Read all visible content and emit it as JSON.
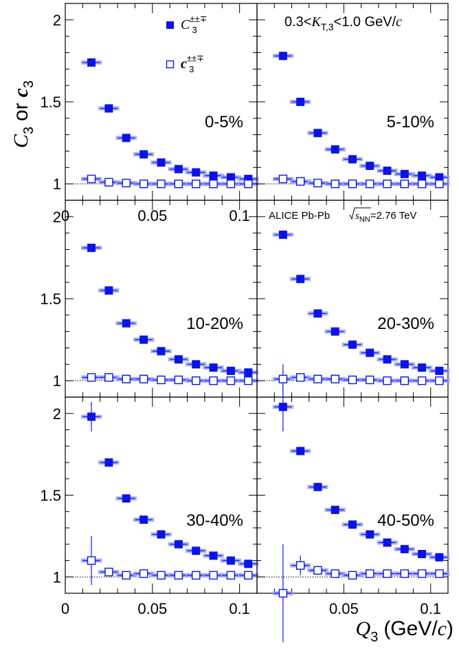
{
  "figure": {
    "y_axis_title": "C",
    "y_axis_title_sub": "3",
    "y_axis_title_or": "or",
    "y_axis_title2": "c",
    "y_axis_title2_sub": "3",
    "x_axis_title": "Q",
    "x_axis_title_sub": "3",
    "x_axis_title_units_open": "(GeV/",
    "x_axis_title_units_c": "c",
    "x_axis_title_units_close": ")",
    "kt_label_prefix": "0.3<",
    "kt_label_K": "K",
    "kt_label_sub": "T,3",
    "kt_label_suffix": "<1.0 GeV/",
    "kt_label_c": "c",
    "alice_label": "ALICE Pb-Pb",
    "alice_sqrt_s": "s",
    "alice_sqrt_sub": "NN",
    "alice_energy": "=2.76 TeV",
    "legend": [
      {
        "symbol": "C",
        "sub": "3",
        "sup": "±±∓",
        "style": "filled"
      },
      {
        "symbol": "c",
        "sub": "3",
        "sup": "±±∓",
        "style": "open"
      }
    ]
  },
  "chart_data": [
    {
      "type": "scatter",
      "panel": "0-5%",
      "centrality_label": "0-5%",
      "xlim": [
        0,
        0.11
      ],
      "ylim": [
        0.9,
        2.1
      ],
      "x_ticks": [
        "0",
        "0.05",
        "0.1"
      ],
      "y_ticks": [
        "1",
        "1.5",
        "2"
      ],
      "series": [
        {
          "name": "C3",
          "marker": "filled-square",
          "x": [
            0.015,
            0.025,
            0.035,
            0.045,
            0.055,
            0.065,
            0.075,
            0.085,
            0.095,
            0.105
          ],
          "y": [
            1.74,
            1.46,
            1.28,
            1.18,
            1.13,
            1.09,
            1.07,
            1.05,
            1.04,
            1.03
          ],
          "yerr": [
            0.005,
            0.004,
            0.003,
            0.003,
            0.003,
            0.003,
            0.003,
            0.003,
            0.003,
            0.003
          ]
        },
        {
          "name": "c3",
          "marker": "open-square",
          "x": [
            0.015,
            0.025,
            0.035,
            0.045,
            0.055,
            0.065,
            0.075,
            0.085,
            0.095,
            0.105
          ],
          "y": [
            1.03,
            1.01,
            1.005,
            1.0,
            1.0,
            1.0,
            1.0,
            1.0,
            1.0,
            1.0
          ],
          "yerr": [
            0.005,
            0.004,
            0.003,
            0.003,
            0.003,
            0.003,
            0.003,
            0.003,
            0.003,
            0.003
          ]
        }
      ]
    },
    {
      "type": "scatter",
      "panel": "5-10%",
      "centrality_label": "5-10%",
      "xlim": [
        0,
        0.11
      ],
      "ylim": [
        0.9,
        2.1
      ],
      "x_ticks": [
        "",
        "",
        ""
      ],
      "y_ticks": [
        "",
        "",
        ""
      ],
      "series": [
        {
          "name": "C3",
          "marker": "filled-square",
          "x": [
            0.015,
            0.025,
            0.035,
            0.045,
            0.055,
            0.065,
            0.075,
            0.085,
            0.095,
            0.105
          ],
          "y": [
            1.78,
            1.5,
            1.31,
            1.21,
            1.15,
            1.11,
            1.08,
            1.06,
            1.05,
            1.04
          ],
          "yerr": [
            0.005,
            0.004,
            0.003,
            0.003,
            0.003,
            0.003,
            0.003,
            0.003,
            0.003,
            0.003
          ]
        },
        {
          "name": "c3",
          "marker": "open-square",
          "x": [
            0.015,
            0.025,
            0.035,
            0.045,
            0.055,
            0.065,
            0.075,
            0.085,
            0.095,
            0.105
          ],
          "y": [
            1.03,
            1.015,
            1.005,
            1.0,
            1.0,
            1.0,
            1.0,
            1.0,
            1.0,
            1.0
          ],
          "yerr": [
            0.005,
            0.004,
            0.003,
            0.003,
            0.003,
            0.003,
            0.003,
            0.003,
            0.003,
            0.003
          ]
        }
      ]
    },
    {
      "type": "scatter",
      "panel": "10-20%",
      "centrality_label": "10-20%",
      "xlim": [
        0,
        0.11
      ],
      "ylim": [
        0.9,
        2.1
      ],
      "x_ticks": [
        "",
        "",
        ""
      ],
      "y_ticks": [
        "1",
        "1.5",
        "2"
      ],
      "series": [
        {
          "name": "C3",
          "marker": "filled-square",
          "x": [
            0.015,
            0.025,
            0.035,
            0.045,
            0.055,
            0.065,
            0.075,
            0.085,
            0.095,
            0.105
          ],
          "y": [
            1.81,
            1.55,
            1.35,
            1.25,
            1.18,
            1.13,
            1.1,
            1.08,
            1.06,
            1.05
          ],
          "yerr": [
            0.006,
            0.005,
            0.004,
            0.003,
            0.003,
            0.003,
            0.003,
            0.003,
            0.003,
            0.003
          ]
        },
        {
          "name": "c3",
          "marker": "open-square",
          "x": [
            0.015,
            0.025,
            0.035,
            0.045,
            0.055,
            0.065,
            0.075,
            0.085,
            0.095,
            0.105
          ],
          "y": [
            1.02,
            1.02,
            1.01,
            1.01,
            1.005,
            1.005,
            1.0,
            1.0,
            1.0,
            1.0
          ],
          "yerr": [
            0.02,
            0.008,
            0.005,
            0.004,
            0.003,
            0.003,
            0.003,
            0.003,
            0.003,
            0.003
          ]
        }
      ]
    },
    {
      "type": "scatter",
      "panel": "20-30%",
      "centrality_label": "20-30%",
      "xlim": [
        0,
        0.11
      ],
      "ylim": [
        0.9,
        2.1
      ],
      "x_ticks": [
        "",
        "",
        ""
      ],
      "y_ticks": [
        "",
        "",
        ""
      ],
      "series": [
        {
          "name": "C3",
          "marker": "filled-square",
          "x": [
            0.015,
            0.025,
            0.035,
            0.045,
            0.055,
            0.065,
            0.075,
            0.085,
            0.095,
            0.105
          ],
          "y": [
            1.89,
            1.62,
            1.41,
            1.3,
            1.22,
            1.17,
            1.13,
            1.1,
            1.08,
            1.06
          ],
          "yerr": [
            0.008,
            0.006,
            0.004,
            0.003,
            0.003,
            0.003,
            0.003,
            0.003,
            0.003,
            0.003
          ]
        },
        {
          "name": "c3",
          "marker": "open-square",
          "x": [
            0.015,
            0.025,
            0.035,
            0.045,
            0.055,
            0.065,
            0.075,
            0.085,
            0.095,
            0.105
          ],
          "y": [
            1.01,
            1.02,
            1.01,
            1.01,
            1.005,
            1.005,
            1.0,
            1.0,
            1.0,
            1.0
          ],
          "yerr": [
            0.09,
            0.01,
            0.005,
            0.004,
            0.003,
            0.003,
            0.003,
            0.003,
            0.003,
            0.003
          ]
        }
      ]
    },
    {
      "type": "scatter",
      "panel": "30-40%",
      "centrality_label": "30-40%",
      "xlim": [
        0,
        0.11
      ],
      "ylim": [
        0.9,
        2.1
      ],
      "x_ticks": [
        "0",
        "0.05",
        "0.1"
      ],
      "y_ticks": [
        "1",
        "1.5",
        "2"
      ],
      "series": [
        {
          "name": "C3",
          "marker": "filled-square",
          "x": [
            0.015,
            0.025,
            0.035,
            0.045,
            0.055,
            0.065,
            0.075,
            0.085,
            0.095,
            0.105
          ],
          "y": [
            1.98,
            1.7,
            1.48,
            1.35,
            1.26,
            1.2,
            1.16,
            1.13,
            1.1,
            1.08
          ],
          "yerr": [
            0.09,
            0.01,
            0.005,
            0.004,
            0.003,
            0.003,
            0.003,
            0.003,
            0.003,
            0.003
          ]
        },
        {
          "name": "c3",
          "marker": "open-square",
          "x": [
            0.015,
            0.025,
            0.035,
            0.045,
            0.055,
            0.065,
            0.075,
            0.085,
            0.095,
            0.105
          ],
          "y": [
            1.1,
            1.03,
            1.01,
            1.02,
            1.01,
            1.01,
            1.01,
            1.01,
            1.01,
            1.01
          ],
          "yerr": [
            0.15,
            0.02,
            0.008,
            0.005,
            0.004,
            0.003,
            0.003,
            0.003,
            0.003,
            0.003
          ]
        }
      ]
    },
    {
      "type": "scatter",
      "panel": "40-50%",
      "centrality_label": "40-50%",
      "xlim": [
        0,
        0.11
      ],
      "ylim": [
        0.9,
        2.1
      ],
      "x_ticks": [
        "",
        "0.05",
        "0.1"
      ],
      "y_ticks": [
        "",
        "",
        ""
      ],
      "series": [
        {
          "name": "C3",
          "marker": "filled-square",
          "x": [
            0.015,
            0.025,
            0.035,
            0.045,
            0.055,
            0.065,
            0.075,
            0.085,
            0.095,
            0.105
          ],
          "y": [
            2.04,
            1.77,
            1.55,
            1.41,
            1.32,
            1.26,
            1.21,
            1.17,
            1.14,
            1.12
          ],
          "yerr": [
            0.15,
            0.02,
            0.006,
            0.004,
            0.003,
            0.003,
            0.003,
            0.003,
            0.003,
            0.003
          ]
        },
        {
          "name": "c3",
          "marker": "open-square",
          "x": [
            0.015,
            0.025,
            0.035,
            0.045,
            0.055,
            0.065,
            0.075,
            0.085,
            0.095,
            0.105
          ],
          "y": [
            0.9,
            1.07,
            1.04,
            1.02,
            1.01,
            1.02,
            1.02,
            1.02,
            1.02,
            1.02
          ],
          "yerr": [
            0.3,
            0.06,
            0.01,
            0.005,
            0.004,
            0.003,
            0.003,
            0.003,
            0.003,
            0.003
          ]
        }
      ]
    }
  ]
}
